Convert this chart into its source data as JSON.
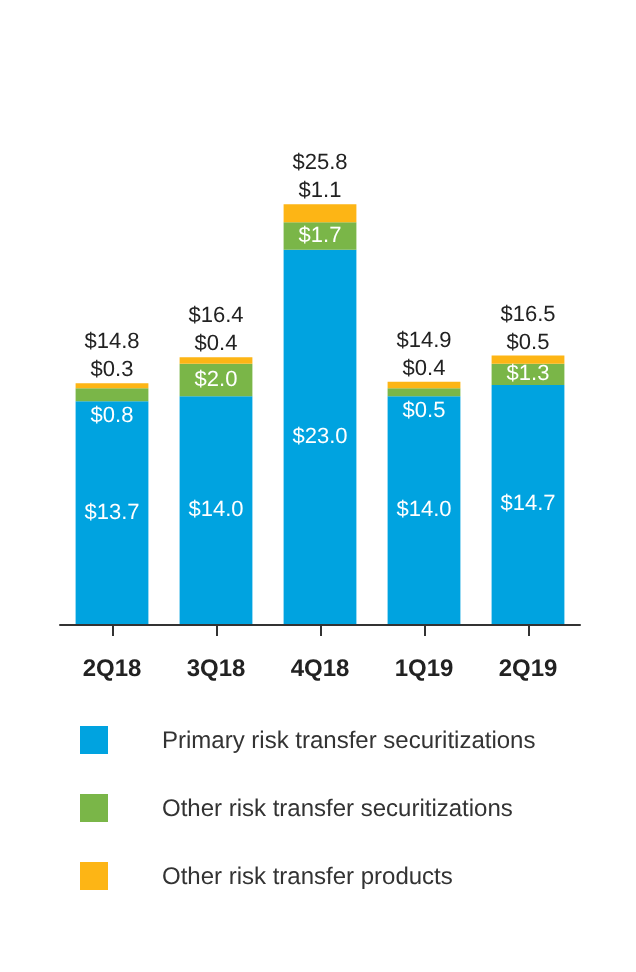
{
  "chart_data": {
    "type": "bar",
    "stacked": true,
    "categories": [
      "2Q18",
      "3Q18",
      "4Q18",
      "1Q19",
      "2Q19"
    ],
    "series": [
      {
        "name": "Primary risk transfer securitizations",
        "color": "#00a3e0",
        "values": [
          13.7,
          14.0,
          23.0,
          14.0,
          14.7
        ],
        "value_labels": [
          "$13.7",
          "$14.0",
          "$23.0",
          "$14.0",
          "$14.7"
        ]
      },
      {
        "name": "Other risk transfer securitizations",
        "color": "#7ab648",
        "values": [
          0.8,
          2.0,
          1.7,
          0.5,
          1.3
        ],
        "value_labels": [
          "$0.8",
          "$2.0",
          "$1.7",
          "$0.5",
          "$1.3"
        ]
      },
      {
        "name": "Other risk transfer products",
        "color": "#fdb515",
        "values": [
          0.3,
          0.4,
          1.1,
          0.4,
          0.5
        ],
        "value_labels": [
          "$0.3",
          "$0.4",
          "$1.1",
          "$0.4",
          "$0.5"
        ]
      }
    ],
    "totals": [
      "$14.8",
      "$16.4",
      "$25.8",
      "$14.9",
      "$16.5"
    ],
    "legend": "bottom"
  }
}
